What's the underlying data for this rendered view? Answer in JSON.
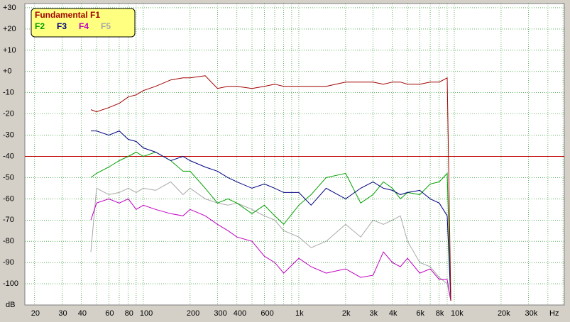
{
  "chart_data": {
    "type": "line",
    "xscale": "log",
    "x_label": "Hz",
    "y_label": "dB",
    "x": [
      46,
      50,
      60,
      70,
      80,
      90,
      100,
      120,
      150,
      180,
      200,
      250,
      300,
      350,
      400,
      500,
      600,
      700,
      800,
      1000,
      1200,
      1500,
      2000,
      2500,
      3000,
      3500,
      4000,
      4500,
      5000,
      6000,
      7000,
      8000,
      9000,
      9500
    ],
    "series": [
      {
        "name": "Fundamental F1",
        "color": "#a00000",
        "values": [
          -18,
          -19,
          -17,
          -15,
          -12,
          -11,
          -9,
          -7,
          -4,
          -3,
          -3,
          -2,
          -8,
          -7,
          -7,
          -8,
          -7,
          -6,
          -7,
          -7,
          -7,
          -7,
          -5,
          -5,
          -5,
          -6,
          -5,
          -5,
          -6,
          -6,
          -5,
          -5,
          -3,
          -108
        ]
      },
      {
        "name": "F2",
        "color": "#00a000",
        "values": [
          -50,
          -48,
          -45,
          -42,
          -40,
          -38,
          -40,
          -38,
          -42,
          -47,
          -47,
          -55,
          -62,
          -60,
          -62,
          -67,
          -63,
          -68,
          -72,
          -63,
          -58,
          -50,
          -48,
          -62,
          -58,
          -52,
          -55,
          -60,
          -57,
          -58,
          -53,
          -52,
          -48,
          -108
        ]
      },
      {
        "name": "F3",
        "color": "#000080",
        "values": [
          -28,
          -28,
          -30,
          -28,
          -32,
          -33,
          -36,
          -38,
          -42,
          -40,
          -42,
          -45,
          -47,
          -50,
          -52,
          -55,
          -53,
          -55,
          -57,
          -57,
          -63,
          -55,
          -60,
          -55,
          -52,
          -55,
          -56,
          -58,
          -57,
          -56,
          -60,
          -62,
          -68,
          -108
        ]
      },
      {
        "name": "F4",
        "color": "#c000c0",
        "values": [
          -70,
          -62,
          -60,
          -62,
          -60,
          -65,
          -63,
          -65,
          -67,
          -68,
          -65,
          -68,
          -72,
          -75,
          -78,
          -80,
          -87,
          -90,
          -95,
          -88,
          -92,
          -95,
          -93,
          -97,
          -96,
          -85,
          -90,
          -92,
          -88,
          -95,
          -93,
          -98,
          -98,
          -108
        ]
      },
      {
        "name": "F5",
        "color": "#a8a8a8",
        "values": [
          -85,
          -55,
          -58,
          -57,
          -55,
          -57,
          -55,
          -56,
          -52,
          -58,
          -55,
          -60,
          -62,
          -63,
          -62,
          -65,
          -68,
          -70,
          -75,
          -78,
          -83,
          -80,
          -72,
          -78,
          -70,
          -72,
          -70,
          -68,
          -80,
          -90,
          -92,
          -97,
          -100,
          -108
        ]
      }
    ],
    "xlim": [
      17.3,
      51000
    ],
    "xticks": [
      20,
      30,
      40,
      60,
      80,
      100,
      200,
      300,
      400,
      600,
      {
        "value": 1000,
        "label": "1k"
      },
      {
        "value": 2000,
        "label": "2k"
      },
      {
        "value": 3000,
        "label": "3k"
      },
      {
        "value": 4000,
        "label": "4k"
      },
      {
        "value": 6000,
        "label": "6k"
      },
      {
        "value": 8000,
        "label": "8k"
      },
      {
        "value": 10000,
        "label": "10k"
      },
      {
        "value": 20000,
        "label": "20k"
      },
      {
        "value": 30000,
        "label": "30k"
      }
    ],
    "xminor": [
      50,
      70,
      90,
      500,
      700,
      800,
      900,
      5000,
      7000,
      9000,
      40000,
      50000
    ],
    "ylim": [
      -110,
      32
    ],
    "yticks": [
      {
        "value": 30,
        "label": "+30"
      },
      {
        "value": 20,
        "label": "+20"
      },
      {
        "value": 10,
        "label": "+10"
      },
      {
        "value": 0,
        "label": "+0"
      },
      -10,
      -20,
      -30,
      -40,
      -50,
      -60,
      -70,
      -80,
      -90,
      -100
    ],
    "hline": {
      "value": -40,
      "color": "#c00000"
    },
    "grid": true,
    "legend": "top-left"
  }
}
